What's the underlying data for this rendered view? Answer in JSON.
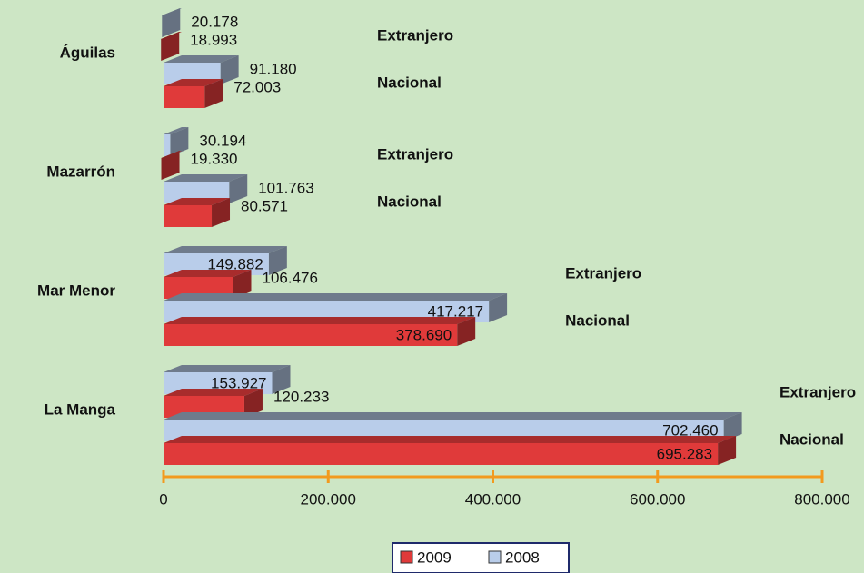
{
  "chart_data": {
    "type": "bar",
    "categories": [
      "Águilas",
      "Mazarrón",
      "Mar Menor",
      "La Manga"
    ],
    "groups": [
      "Extranjero",
      "Nacional"
    ],
    "series": [
      {
        "name": "2009",
        "color": "#e03a3a",
        "values": [
          [
            18993,
            72003
          ],
          [
            19330,
            80571
          ],
          [
            106476,
            378690
          ],
          [
            120233,
            695283
          ]
        ],
        "value_labels": [
          [
            "18.993",
            "72.003"
          ],
          [
            "19.330",
            "80.571"
          ],
          [
            "106.476",
            "378.690"
          ],
          [
            "120.233",
            "695.283"
          ]
        ]
      },
      {
        "name": "2008",
        "color": "#b9cdea",
        "values": [
          [
            20178,
            91180
          ],
          [
            30194,
            101763
          ],
          [
            149882,
            417217
          ],
          [
            153927,
            702460
          ]
        ],
        "value_labels": [
          [
            "20.178",
            "91.180"
          ],
          [
            "30.194",
            "101.763"
          ],
          [
            "149.882",
            "417.217"
          ],
          [
            "153.927",
            "702.460"
          ]
        ]
      }
    ],
    "xlim": [
      0,
      800000
    ],
    "xticks": [
      0,
      {
        "value": 200000,
        "label": "200.000"
      },
      {
        "value": 400000,
        "label": "400.000"
      },
      {
        "value": 600000,
        "label": "600.000"
      },
      {
        "value": 800000,
        "label": "800.000"
      }
    ]
  }
}
